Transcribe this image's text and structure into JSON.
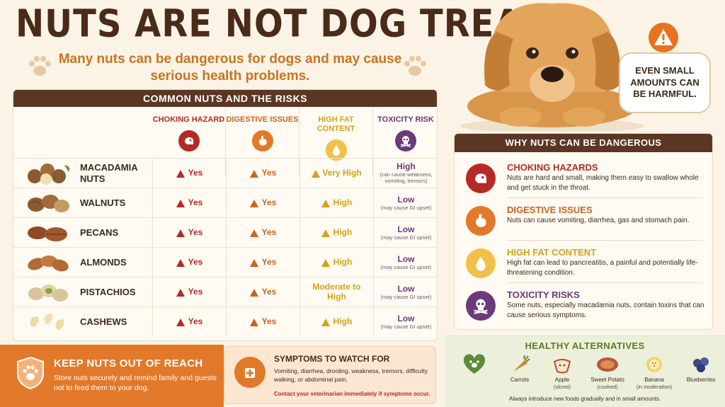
{
  "header": {
    "title": "NUTS ARE NOT DOG TREATS",
    "subtitle": "Many nuts can be dangerous for dogs and may cause serious health problems."
  },
  "callout": {
    "text": "EVEN SMALL AMOUNTS CAN BE HARMFUL."
  },
  "table": {
    "title": "COMMON NUTS AND THE RISKS",
    "columns": [
      {
        "label": "CHOKING HAZARD",
        "icon": "dog-choking-icon",
        "color": "#b52a24"
      },
      {
        "label": "DIGESTIVE ISSUES",
        "icon": "stomach-icon",
        "color": "#c8641f"
      },
      {
        "label": "HIGH FAT CONTENT",
        "icon": "fat-drop-icon",
        "color": "#d4a21a"
      },
      {
        "label": "TOXICITY RISK",
        "icon": "skull-icon",
        "color": "#6a3a7a"
      }
    ],
    "rows": [
      {
        "name": "MACADAMIA NUTS",
        "choking": "Yes",
        "digestive": "Yes",
        "fat": "Very High",
        "tox": "High",
        "tox_note": "(can cause weakness, vomiting, tremors)"
      },
      {
        "name": "WALNUTS",
        "choking": "Yes",
        "digestive": "Yes",
        "fat": "High",
        "tox": "Low",
        "tox_note": "(may cause GI upset)"
      },
      {
        "name": "PECANS",
        "choking": "Yes",
        "digestive": "Yes",
        "fat": "High",
        "tox": "Low",
        "tox_note": "(may cause GI upset)"
      },
      {
        "name": "ALMONDS",
        "choking": "Yes",
        "digestive": "Yes",
        "fat": "High",
        "tox": "Low",
        "tox_note": "(may cause GI upset)"
      },
      {
        "name": "PISTACHIOS",
        "choking": "Yes",
        "digestive": "Yes",
        "fat": "Moderate to High",
        "tox": "Low",
        "tox_note": "(may cause GI upset)"
      },
      {
        "name": "CASHEWS",
        "choking": "Yes",
        "digestive": "Yes",
        "fat": "High",
        "tox": "Low",
        "tox_note": "(may cause GI upset)"
      }
    ]
  },
  "why": {
    "title": "WHY NUTS CAN BE DANGEROUS",
    "items": [
      {
        "heading": "CHOKING HAZARDS",
        "text": "Nuts are hard and small, making them easy to swallow whole and get stuck in the throat.",
        "color": "#b52a24"
      },
      {
        "heading": "DIGESTIVE ISSUES",
        "text": "Nuts can cause vomiting, diarrhea, gas and stomach pain.",
        "color": "#c8641f"
      },
      {
        "heading": "HIGH FAT CONTENT",
        "text": "High fat can lead to pancreatitis, a painful and potentially life-threatening condition.",
        "color": "#d4a21a"
      },
      {
        "heading": "TOXICITY RISKS",
        "text": "Some nuts, especially macadamia nuts, contain toxins that can cause serious symptoms.",
        "color": "#6a3a7a"
      }
    ]
  },
  "keep": {
    "heading": "KEEP NUTS OUT OF REACH",
    "text": "Store nuts securely and remind family and guests not to feed them to your dog."
  },
  "symptoms": {
    "heading": "SYMPTOMS TO WATCH FOR",
    "text": "Vomiting, diarrhea, drooling, weakness, tremors, difficulty walking, or abdominal pain.",
    "warning": "Contact your veterinarian immediately if symptoms occur."
  },
  "healthy": {
    "title": "HEALTHY ALTERNATIVES",
    "foods": [
      {
        "name": "Carrots",
        "sub": ""
      },
      {
        "name": "Apple",
        "sub": "(sliced)"
      },
      {
        "name": "Sweet Potato",
        "sub": "(cooked)"
      },
      {
        "name": "Banana",
        "sub": "(in moderation)"
      },
      {
        "name": "Blueberries",
        "sub": ""
      }
    ],
    "footer": "Always introduce new foods gradually and in small amounts."
  }
}
